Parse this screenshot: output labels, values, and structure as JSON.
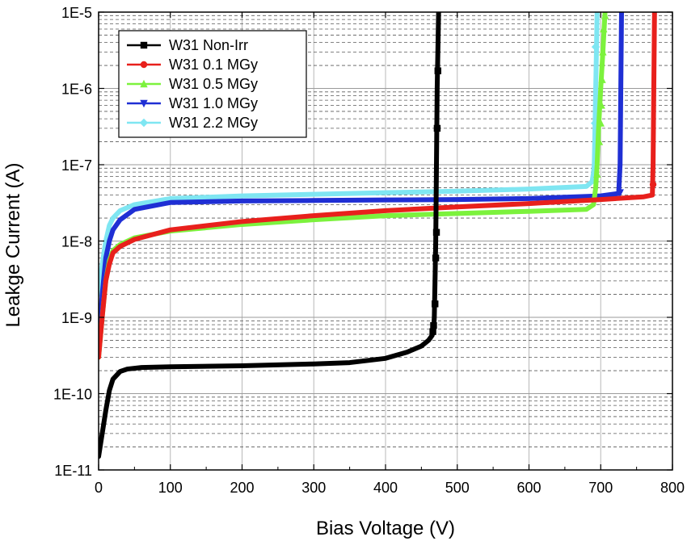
{
  "chart_data": {
    "type": "line",
    "title": "",
    "xlabel": "Bias Voltage (V)",
    "ylabel": "Leakge Current (A)",
    "xlim": [
      0,
      800
    ],
    "ylim": [
      1e-11,
      1e-05
    ],
    "yscale": "log",
    "grid": true,
    "legend_position": "top-left",
    "x_ticks": [
      0,
      100,
      200,
      300,
      400,
      500,
      600,
      700,
      800
    ],
    "x_tick_labels": [
      "0",
      "100",
      "200",
      "300",
      "400",
      "500",
      "600",
      "700",
      "800"
    ],
    "y_ticks": [
      1e-11,
      1e-10,
      1e-09,
      1e-08,
      1e-07,
      1e-06,
      1e-05
    ],
    "y_tick_labels": [
      "1E-11",
      "1E-10",
      "1E-9",
      "1E-8",
      "1E-7",
      "1E-6",
      "1E-5"
    ],
    "series": [
      {
        "name": "W31 Non-Irr",
        "color": "#000000",
        "marker": "square",
        "points": [
          [
            0,
            1.5e-11
          ],
          [
            5,
            3e-11
          ],
          [
            10,
            6e-11
          ],
          [
            15,
            1.1e-10
          ],
          [
            20,
            1.55e-10
          ],
          [
            30,
            1.95e-10
          ],
          [
            40,
            2.1e-10
          ],
          [
            60,
            2.2e-10
          ],
          [
            100,
            2.25e-10
          ],
          [
            200,
            2.32e-10
          ],
          [
            300,
            2.45e-10
          ],
          [
            350,
            2.55e-10
          ],
          [
            400,
            2.9e-10
          ],
          [
            430,
            3.5e-10
          ],
          [
            450,
            4.2e-10
          ],
          [
            460,
            5e-10
          ],
          [
            465,
            5.8e-10
          ],
          [
            467,
            7e-10
          ],
          [
            468,
            1e-09
          ],
          [
            469,
            3e-09
          ],
          [
            470,
            1e-08
          ],
          [
            471,
            1e-07
          ],
          [
            472,
            1e-06
          ],
          [
            474,
            1e-05
          ]
        ],
        "marker_points": [
          [
            466,
            6.5e-10
          ],
          [
            467,
            7.8e-10
          ],
          [
            469,
            1.5e-09
          ],
          [
            470,
            6e-09
          ],
          [
            471,
            1.3e-08
          ],
          [
            472,
            3e-07
          ],
          [
            473,
            1.7e-06
          ]
        ]
      },
      {
        "name": "W31 0.1 MGy",
        "color": "#e8201c",
        "marker": "circle",
        "points": [
          [
            0,
            3e-10
          ],
          [
            5,
            1e-09
          ],
          [
            10,
            3e-09
          ],
          [
            15,
            5e-09
          ],
          [
            20,
            7e-09
          ],
          [
            30,
            8.5e-09
          ],
          [
            50,
            1.05e-08
          ],
          [
            100,
            1.4e-08
          ],
          [
            200,
            1.8e-08
          ],
          [
            300,
            2.15e-08
          ],
          [
            400,
            2.5e-08
          ],
          [
            500,
            2.8e-08
          ],
          [
            600,
            3.1e-08
          ],
          [
            700,
            3.5e-08
          ],
          [
            760,
            3.8e-08
          ],
          [
            772,
            4e-08
          ],
          [
            773,
            1e-07
          ],
          [
            774,
            1e-06
          ],
          [
            775,
            1e-05
          ]
        ],
        "marker_points": [
          [
            773,
            5.5e-08
          ]
        ]
      },
      {
        "name": "W31 0.5 MGy",
        "color": "#7cf23d",
        "marker": "triangle-up",
        "points": [
          [
            0,
            3e-10
          ],
          [
            5,
            1e-09
          ],
          [
            10,
            3e-09
          ],
          [
            15,
            5.5e-09
          ],
          [
            20,
            7.5e-09
          ],
          [
            30,
            9e-09
          ],
          [
            50,
            1.1e-08
          ],
          [
            100,
            1.35e-08
          ],
          [
            200,
            1.65e-08
          ],
          [
            300,
            1.9e-08
          ],
          [
            400,
            2.15e-08
          ],
          [
            500,
            2.3e-08
          ],
          [
            600,
            2.45e-08
          ],
          [
            680,
            2.6e-08
          ],
          [
            690,
            3e-08
          ],
          [
            693,
            5e-08
          ],
          [
            695,
            1e-07
          ],
          [
            697,
            3e-07
          ],
          [
            700,
            1e-06
          ],
          [
            703,
            3e-06
          ],
          [
            706,
            1e-05
          ]
        ],
        "marker_points": [
          [
            695,
            7.5e-08
          ],
          [
            698,
            2e-07
          ],
          [
            700,
            3.5e-07
          ],
          [
            701,
            6e-07
          ],
          [
            702,
            1.3e-06
          ],
          [
            703,
            3e-06
          ],
          [
            704,
            6e-06
          ],
          [
            706,
            9e-06
          ]
        ]
      },
      {
        "name": "W31 1.0 MGy",
        "color": "#1f2fd4",
        "marker": "triangle-down",
        "points": [
          [
            0,
            5e-10
          ],
          [
            5,
            2e-09
          ],
          [
            10,
            6e-09
          ],
          [
            15,
            1e-08
          ],
          [
            20,
            1.4e-08
          ],
          [
            30,
            1.9e-08
          ],
          [
            50,
            2.6e-08
          ],
          [
            100,
            3.2e-08
          ],
          [
            200,
            3.35e-08
          ],
          [
            300,
            3.4e-08
          ],
          [
            400,
            3.45e-08
          ],
          [
            500,
            3.5e-08
          ],
          [
            600,
            3.6e-08
          ],
          [
            700,
            3.9e-08
          ],
          [
            725,
            4.2e-08
          ],
          [
            727,
            1e-07
          ],
          [
            728,
            1e-06
          ],
          [
            729,
            1e-05
          ]
        ],
        "marker_points": [
          [
            727,
            4.3e-08
          ]
        ]
      },
      {
        "name": "W31 2.2 MGy",
        "color": "#7fe6f2",
        "marker": "diamond",
        "points": [
          [
            0,
            2e-09
          ],
          [
            5,
            5e-09
          ],
          [
            10,
            1e-08
          ],
          [
            15,
            1.6e-08
          ],
          [
            20,
            2e-08
          ],
          [
            30,
            2.5e-08
          ],
          [
            50,
            3e-08
          ],
          [
            100,
            3.6e-08
          ],
          [
            200,
            3.9e-08
          ],
          [
            300,
            4.1e-08
          ],
          [
            400,
            4.3e-08
          ],
          [
            500,
            4.5e-08
          ],
          [
            600,
            4.8e-08
          ],
          [
            680,
            5.2e-08
          ],
          [
            688,
            6e-08
          ],
          [
            690,
            8e-08
          ],
          [
            691,
            1e-07
          ],
          [
            692,
            3e-07
          ],
          [
            693,
            1e-06
          ],
          [
            694,
            3e-06
          ],
          [
            695,
            1e-05
          ]
        ],
        "marker_points": [
          [
            692,
            3.5e-07
          ],
          [
            693,
            3.5e-06
          ]
        ]
      }
    ]
  }
}
